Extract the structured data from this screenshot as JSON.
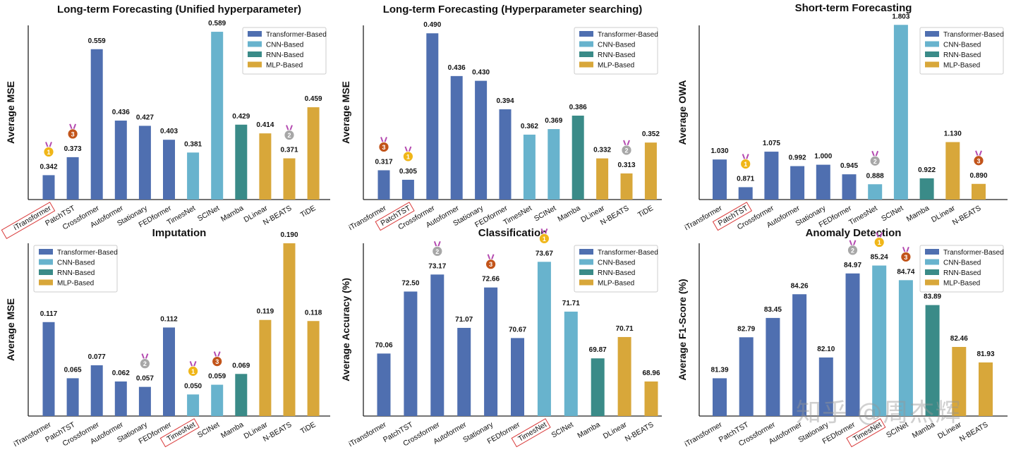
{
  "colors": {
    "transformer": "#4f6fb0",
    "cnn": "#68b3cd",
    "rnn": "#3a8b88",
    "mlp": "#d8a73a",
    "gold": "#f0b618",
    "silver": "#a7a7a7",
    "bronze": "#c2541a",
    "highlight": "#d93a3a"
  },
  "legend_labels": {
    "transformer": "Transformer-Based",
    "cnn": "CNN-Based",
    "rnn": "RNN-Based",
    "mlp": "MLP-Based"
  },
  "medal_labels": {
    "1": "1",
    "2": "2",
    "3": "3"
  },
  "watermark": "知乎 @周杰辉",
  "chart_data": [
    {
      "type": "bar",
      "title": "Long-term Forecasting (Unified hyperparameter)",
      "ylabel": "Average MSE",
      "ylim": [
        0.3,
        0.6
      ],
      "decimals": 3,
      "legend": "top-right",
      "highlight": "iTransformer",
      "categories": [
        "iTransformer",
        "PatchTST",
        "Crossformer",
        "Autoformer",
        "Stationary",
        "FEDformer",
        "TimesNet",
        "SCINet",
        "Mamba",
        "DLinear",
        "N-BEATS",
        "TiDE"
      ],
      "values": [
        0.342,
        0.373,
        0.559,
        0.436,
        0.427,
        0.403,
        0.381,
        0.589,
        0.429,
        0.414,
        0.371,
        0.459
      ],
      "groups": [
        "transformer",
        "transformer",
        "transformer",
        "transformer",
        "transformer",
        "transformer",
        "cnn",
        "cnn",
        "rnn",
        "mlp",
        "mlp",
        "mlp"
      ],
      "medals": [
        1,
        3,
        0,
        0,
        0,
        0,
        0,
        0,
        0,
        0,
        2,
        0
      ]
    },
    {
      "type": "bar",
      "title": "Long-term Forecasting (Hyperparameter searching)",
      "ylabel": "Average MSE",
      "ylim": [
        0.28,
        0.5
      ],
      "decimals": 3,
      "legend": "top-right",
      "highlight": "PatchTST",
      "categories": [
        "iTransformer",
        "PatchTST",
        "Crossformer",
        "Autoformer",
        "Stationary",
        "FEDformer",
        "TimesNet",
        "SCINet",
        "Mamba",
        "DLinear",
        "N-BEATS",
        "TiDE"
      ],
      "values": [
        0.317,
        0.305,
        0.49,
        0.436,
        0.43,
        0.394,
        0.362,
        0.369,
        0.386,
        0.332,
        0.313,
        0.352
      ],
      "groups": [
        "transformer",
        "transformer",
        "transformer",
        "transformer",
        "transformer",
        "transformer",
        "cnn",
        "cnn",
        "rnn",
        "mlp",
        "mlp",
        "mlp"
      ],
      "medals": [
        3,
        1,
        0,
        0,
        0,
        0,
        0,
        0,
        0,
        0,
        2,
        0
      ]
    },
    {
      "type": "bar",
      "title": "Short-term Forecasting",
      "ylabel": "Average OWA",
      "ylim": [
        0.8,
        1.8
      ],
      "decimals": 3,
      "legend": "top-right",
      "highlight": "PatchTST",
      "categories": [
        "iTransformer",
        "PatchTST",
        "Crossformer",
        "Autoformer",
        "Stationary",
        "FEDformer",
        "TimesNet",
        "SCINet",
        "Mamba",
        "DLinear",
        "N-BEATS"
      ],
      "values": [
        1.03,
        0.871,
        1.075,
        0.992,
        1.0,
        0.945,
        0.888,
        1.803,
        0.922,
        1.13,
        0.89
      ],
      "groups": [
        "transformer",
        "transformer",
        "transformer",
        "transformer",
        "transformer",
        "transformer",
        "cnn",
        "cnn",
        "rnn",
        "mlp",
        "mlp"
      ],
      "medals": [
        0,
        1,
        0,
        0,
        0,
        0,
        2,
        0,
        0,
        0,
        3
      ]
    },
    {
      "type": "bar",
      "title": "Imputation",
      "ylabel": "Average MSE",
      "ylim": [
        0.03,
        0.19
      ],
      "decimals": 3,
      "legend": "top-left",
      "highlight": "TimesNet",
      "categories": [
        "iTransformer",
        "PatchTST",
        "Crossformer",
        "Autoformer",
        "Stationary",
        "FEDformer",
        "TimesNet",
        "SCINet",
        "Mamba",
        "DLinear",
        "N-BEATS",
        "TiDE"
      ],
      "values": [
        0.117,
        0.065,
        0.077,
        0.062,
        0.057,
        0.112,
        0.05,
        0.059,
        0.069,
        0.119,
        0.19,
        0.118
      ],
      "groups": [
        "transformer",
        "transformer",
        "transformer",
        "transformer",
        "transformer",
        "transformer",
        "cnn",
        "cnn",
        "rnn",
        "mlp",
        "mlp",
        "mlp"
      ],
      "medals": [
        0,
        0,
        0,
        0,
        2,
        0,
        1,
        3,
        0,
        0,
        0,
        0
      ]
    },
    {
      "type": "bar",
      "title": "Classification",
      "ylabel": "Average Accuracy (%)",
      "ylim": [
        67.6,
        74.4
      ],
      "decimals": 2,
      "legend": "top-right",
      "highlight": "TimesNet",
      "categories": [
        "iTransformer",
        "PatchTST",
        "Crossformer",
        "Autoformer",
        "Stationary",
        "FEDformer",
        "TimesNet",
        "SCINet",
        "Mamba",
        "DLinear",
        "N-BEATS"
      ],
      "values": [
        70.06,
        72.5,
        73.17,
        71.07,
        72.66,
        70.67,
        73.67,
        71.71,
        69.87,
        70.71,
        68.96
      ],
      "groups": [
        "transformer",
        "transformer",
        "transformer",
        "transformer",
        "transformer",
        "transformer",
        "cnn",
        "cnn",
        "rnn",
        "mlp",
        "mlp"
      ],
      "medals": [
        0,
        0,
        2,
        0,
        3,
        0,
        1,
        0,
        0,
        0,
        0
      ]
    },
    {
      "type": "bar",
      "title": "Anomaly Detection",
      "ylabel": "Average F1-Score (%)",
      "ylim": [
        80.1,
        86.0
      ],
      "decimals": 2,
      "legend": "top-right",
      "highlight": "TimesNet",
      "categories": [
        "iTransformer",
        "PatchTST",
        "Crossformer",
        "Autoformer",
        "Stationary",
        "FEDformer",
        "TimesNet",
        "SCINet",
        "Mamba",
        "DLinear",
        "N-BEATS"
      ],
      "values": [
        81.39,
        82.79,
        83.45,
        84.26,
        82.1,
        84.97,
        85.24,
        84.74,
        83.89,
        82.46,
        81.93
      ],
      "groups": [
        "transformer",
        "transformer",
        "transformer",
        "transformer",
        "transformer",
        "transformer",
        "cnn",
        "cnn",
        "rnn",
        "mlp",
        "mlp"
      ],
      "medals": [
        0,
        0,
        0,
        0,
        0,
        2,
        1,
        3,
        0,
        0,
        0
      ]
    }
  ]
}
